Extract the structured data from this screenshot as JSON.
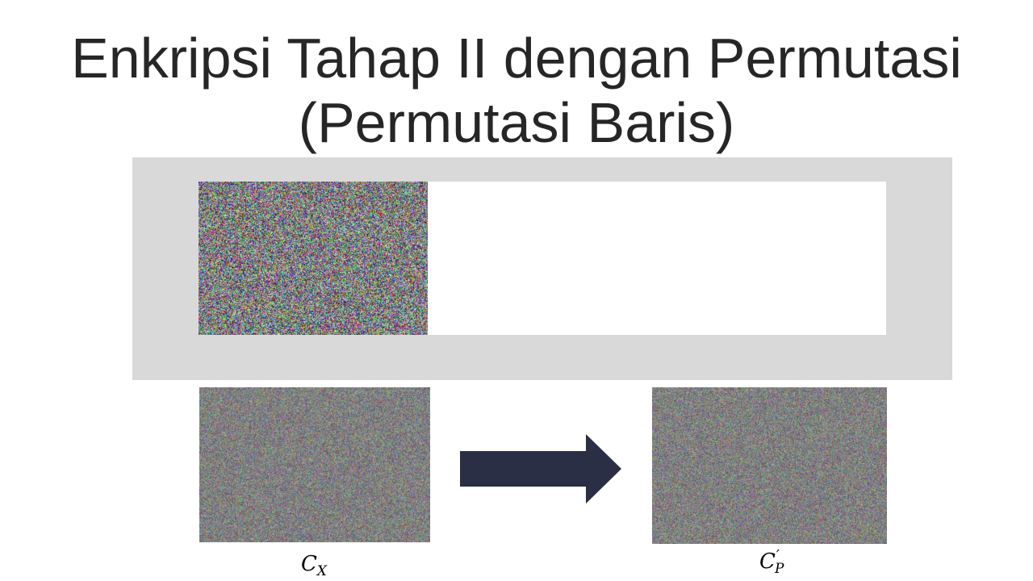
{
  "title": {
    "line1": "Enkripsi Tahap II dengan Permutasi",
    "line2": "(Permutasi Baris)"
  },
  "images": {
    "top": {
      "name": "encrypted-noise-image-top"
    },
    "left": {
      "name": "encrypted-noise-image-cx",
      "tone": "muted"
    },
    "right": {
      "name": "encrypted-noise-image-cp",
      "tone": "muted"
    }
  },
  "arrow": {
    "color": "#2b2f45",
    "icon": "right-arrow-icon"
  },
  "labels": {
    "left": {
      "base": "C",
      "sub": "X"
    },
    "right": {
      "base": "C",
      "prime": "′",
      "sub": "P"
    }
  },
  "colors": {
    "panel": "#d9d9d9",
    "title": "#262626",
    "arrow": "#2b2f45"
  }
}
